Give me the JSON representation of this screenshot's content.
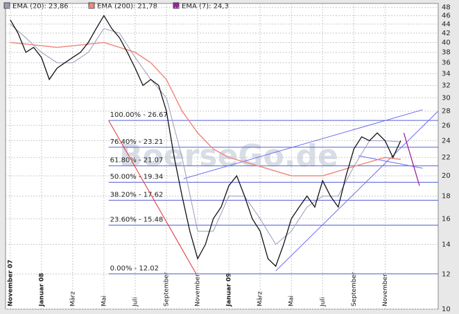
{
  "chart_data": {
    "type": "line",
    "watermark": "BoerseGo.de",
    "log_y": true,
    "grid": true,
    "xlim": [
      -0.3,
      27.4
    ],
    "ylim": [
      10,
      49
    ],
    "yticks": [
      10,
      12,
      14,
      16,
      18,
      20,
      22,
      24,
      26,
      28,
      30,
      32,
      34,
      36,
      38,
      40,
      42,
      44,
      46,
      48
    ],
    "xticks": [
      {
        "value": 0,
        "label": "November 07",
        "bold": true
      },
      {
        "value": 2,
        "label": "Januar 08",
        "bold": true
      },
      {
        "value": 4,
        "label": "März"
      },
      {
        "value": 6,
        "label": "Mai"
      },
      {
        "value": 8,
        "label": "Juli"
      },
      {
        "value": 10,
        "label": "September"
      },
      {
        "value": 12,
        "label": "November"
      },
      {
        "value": 14,
        "label": "Januar 09",
        "bold": true
      },
      {
        "value": 16,
        "label": "März"
      },
      {
        "value": 18,
        "label": "Mai"
      },
      {
        "value": 20,
        "label": "Juli"
      },
      {
        "value": 22,
        "label": "September"
      },
      {
        "value": 24,
        "label": "November"
      }
    ],
    "price": {
      "color": "#111111",
      "x": [
        0,
        0.5,
        1,
        1.5,
        2,
        2.5,
        3,
        3.5,
        4,
        4.5,
        5,
        5.5,
        6,
        6.5,
        7,
        7.5,
        8,
        8.5,
        9,
        9.5,
        10,
        10.5,
        11,
        11.5,
        12,
        12.5,
        13,
        13.5,
        14,
        14.5,
        15,
        15.5,
        16,
        16.5,
        17,
        17.5,
        18,
        18.5,
        19,
        19.5,
        20,
        20.5,
        21,
        21.5,
        22,
        22.5,
        23,
        23.5,
        24,
        24.5,
        25
      ],
      "values": [
        45,
        42,
        38,
        39,
        37,
        33,
        35,
        36,
        37,
        38,
        40,
        43,
        46,
        43,
        41,
        38,
        35,
        32,
        33,
        32,
        28,
        22,
        18,
        15,
        13,
        14,
        16,
        17,
        19,
        20,
        18,
        16,
        15,
        13,
        12.5,
        14,
        16,
        17,
        18,
        17,
        19.5,
        18,
        17,
        20,
        23,
        24.5,
        24,
        25,
        24,
        22,
        24
      ]
    },
    "series": [
      {
        "name": "EMA (20): 23,86",
        "color": "#9a9ab8",
        "x": [
          0,
          1,
          2,
          3,
          4,
          5,
          6,
          7,
          8,
          9,
          10,
          11,
          12,
          13,
          14,
          15,
          16,
          17,
          18,
          19,
          20,
          21,
          22,
          23,
          24,
          25
        ],
        "values": [
          44,
          41,
          38,
          36,
          36,
          38,
          43,
          42,
          37,
          33,
          30,
          22,
          15,
          15,
          18,
          18,
          16,
          14,
          15,
          17,
          18,
          18,
          21,
          24,
          24,
          23.86
        ]
      },
      {
        "name": "EMA (200): 21,78",
        "color": "#f08a80",
        "x": [
          0,
          3,
          6,
          8,
          9,
          10,
          11,
          12,
          13,
          14,
          16,
          18,
          19,
          20,
          22,
          24,
          25
        ],
        "values": [
          40,
          39,
          40,
          38,
          36,
          33,
          28,
          25,
          23,
          22,
          21,
          20,
          20,
          20,
          21,
          22,
          21.78
        ]
      },
      {
        "name": "EMA (7): 24,3",
        "color": "#a020a0",
        "x": [
          25.2,
          26.2
        ],
        "values": [
          25,
          19
        ]
      }
    ],
    "fib_levels": [
      {
        "value": 26.67,
        "label": "100.00% - 26.67"
      },
      {
        "value": 23.21,
        "label": "76.40% - 23.21"
      },
      {
        "value": 21.07,
        "label": "61.80% - 21.07"
      },
      {
        "value": 19.34,
        "label": "50.00% - 19.34"
      },
      {
        "value": 17.62,
        "label": "38.20% - 17.62"
      },
      {
        "value": 15.48,
        "label": "23.60% - 15.48"
      },
      {
        "value": 12.02,
        "label": "0.00% - 12.02"
      }
    ],
    "fib_start": 6.3,
    "trend_lines": [
      {
        "color": "#e03030",
        "x": [
          6.3,
          11.9
        ],
        "values": [
          26.67,
          12.02
        ]
      },
      {
        "color": "#6b6bef",
        "x": [
          11.1,
          26.4
        ],
        "values": [
          19.7,
          28.2
        ]
      },
      {
        "color": "#6b6bef",
        "x": [
          17,
          27.4
        ],
        "values": [
          12.2,
          28
        ]
      },
      {
        "color": "#6b6bef",
        "x": [
          22.3,
          26.4
        ],
        "values": [
          22.2,
          20.8
        ]
      }
    ]
  }
}
